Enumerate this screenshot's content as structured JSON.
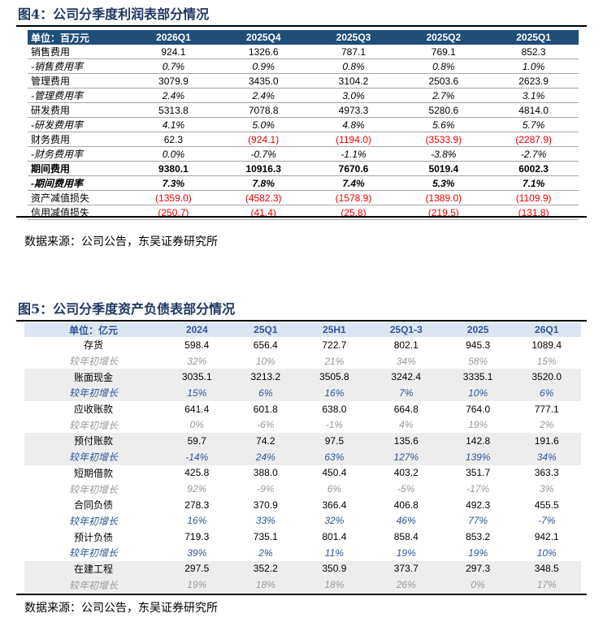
{
  "fig4": {
    "title": "图4：公司分季度利润表部分情况",
    "headers": [
      "单位：百万元",
      "2026Q1",
      "2025Q4",
      "2025Q3",
      "2025Q2",
      "2025Q1"
    ],
    "rows": [
      {
        "label": "销售费用",
        "values": [
          "924.1",
          "1326.6",
          "787.1",
          "769.1",
          "852.3"
        ],
        "style": ""
      },
      {
        "label": "-销售费用率",
        "values": [
          "0.7%",
          "0.9%",
          "0.8%",
          "0.8%",
          "1.0%"
        ],
        "style": "rate"
      },
      {
        "label": "管理费用",
        "values": [
          "3079.9",
          "3435.0",
          "3104.2",
          "2503.6",
          "2623.9"
        ],
        "style": ""
      },
      {
        "label": "-管理费用率",
        "values": [
          "2.4%",
          "2.4%",
          "3.0%",
          "2.7%",
          "3.1%"
        ],
        "style": "rate"
      },
      {
        "label": "研发费用",
        "values": [
          "5313.8",
          "7078.8",
          "4973.3",
          "5280.6",
          "4814.0"
        ],
        "style": ""
      },
      {
        "label": "-研发费用率",
        "values": [
          "4.1%",
          "5.0%",
          "4.8%",
          "5.6%",
          "5.7%"
        ],
        "style": "rate"
      },
      {
        "label": "财务费用",
        "values": [
          "62.3",
          "(924.1)",
          "(1194.0)",
          "(3533.9)",
          "(2287.9)"
        ],
        "style": ""
      },
      {
        "label": "-财务费用率",
        "values": [
          "0.0%",
          "-0.7%",
          "-1.1%",
          "-3.8%",
          "-2.7%"
        ],
        "style": "rate"
      },
      {
        "label": "期间费用",
        "values": [
          "9380.1",
          "10916.3",
          "7670.6",
          "5019.4",
          "6002.3"
        ],
        "style": "bold"
      },
      {
        "label": "-期间费用率",
        "values": [
          "7.3%",
          "7.8%",
          "7.4%",
          "5.3%",
          "7.1%"
        ],
        "style": "rate bold"
      },
      {
        "label": "资产减值损失",
        "values": [
          "(1359.0)",
          "(4582.3)",
          "(1578.9)",
          "(1389.0)",
          "(1109.9)"
        ],
        "style": ""
      },
      {
        "label": "信用减值损失",
        "values": [
          "(250.7)",
          "(41.4)",
          "(25.8)",
          "(219.5)",
          "(131.8)"
        ],
        "style": ""
      }
    ],
    "source": "数据来源：公司公告，东吴证券研究所"
  },
  "fig5": {
    "title": "图5：公司分季度资产负债表部分情况",
    "headers": [
      "单位：亿元",
      "2024",
      "25Q1",
      "25H1",
      "25Q1-3",
      "2025",
      "26Q1"
    ],
    "rows": [
      {
        "label": "存货",
        "values": [
          "598.4",
          "656.4",
          "722.7",
          "802.1",
          "945.3",
          "1089.4"
        ],
        "style": ""
      },
      {
        "label": "较年初增长",
        "values": [
          "32%",
          "10%",
          "21%",
          "34%",
          "58%",
          "15%"
        ],
        "style": "g"
      },
      {
        "label": "账面现金",
        "values": [
          "3035.1",
          "3213.2",
          "3505.8",
          "3242.4",
          "3335.1",
          "3520.0"
        ],
        "style": "shade"
      },
      {
        "label": "较年初增长",
        "values": [
          "15%",
          "6%",
          "16%",
          "7%",
          "10%",
          "6%"
        ],
        "style": "b shade"
      },
      {
        "label": "应收账款",
        "values": [
          "641.4",
          "601.8",
          "638.0",
          "664.8",
          "764.0",
          "777.1"
        ],
        "style": ""
      },
      {
        "label": "较年初增长",
        "values": [
          "0%",
          "-6%",
          "-1%",
          "4%",
          "19%",
          "2%"
        ],
        "style": "g"
      },
      {
        "label": "预付账款",
        "values": [
          "59.7",
          "74.2",
          "97.5",
          "135.6",
          "142.8",
          "191.6"
        ],
        "style": "shade"
      },
      {
        "label": "较年初增长",
        "values": [
          "-14%",
          "24%",
          "63%",
          "127%",
          "139%",
          "34%"
        ],
        "style": "b shade"
      },
      {
        "label": "短期借款",
        "values": [
          "425.8",
          "388.0",
          "450.4",
          "403.2",
          "351.7",
          "363.3"
        ],
        "style": ""
      },
      {
        "label": "较年初增长",
        "values": [
          "92%",
          "-9%",
          "6%",
          "-5%",
          "-17%",
          "3%"
        ],
        "style": "g"
      },
      {
        "label": "合同负债",
        "values": [
          "278.3",
          "370.9",
          "366.4",
          "406.8",
          "492.3",
          "455.5"
        ],
        "style": ""
      },
      {
        "label": "较年初增长",
        "values": [
          "16%",
          "33%",
          "32%",
          "46%",
          "77%",
          "-7%"
        ],
        "style": "b"
      },
      {
        "label": "预计负债",
        "values": [
          "719.3",
          "735.1",
          "801.4",
          "858.4",
          "853.2",
          "942.1"
        ],
        "style": ""
      },
      {
        "label": "较年初增长",
        "values": [
          "39%",
          "2%",
          "11%",
          "19%",
          "19%",
          "10%"
        ],
        "style": "b"
      },
      {
        "label": "在建工程",
        "values": [
          "297.5",
          "352.2",
          "350.9",
          "373.7",
          "297.3",
          "348.5"
        ],
        "style": "shade"
      },
      {
        "label": "较年初增长",
        "values": [
          "19%",
          "18%",
          "18%",
          "26%",
          "0%",
          "17%"
        ],
        "style": "g shade"
      }
    ],
    "source": "数据来源：公司公告，东吴证券研究所"
  },
  "colors": {
    "header_dark": "#1f4e79",
    "header_light": "#dce6f2",
    "negative": "#ee0000",
    "growth_blue": "#2f5597"
  }
}
